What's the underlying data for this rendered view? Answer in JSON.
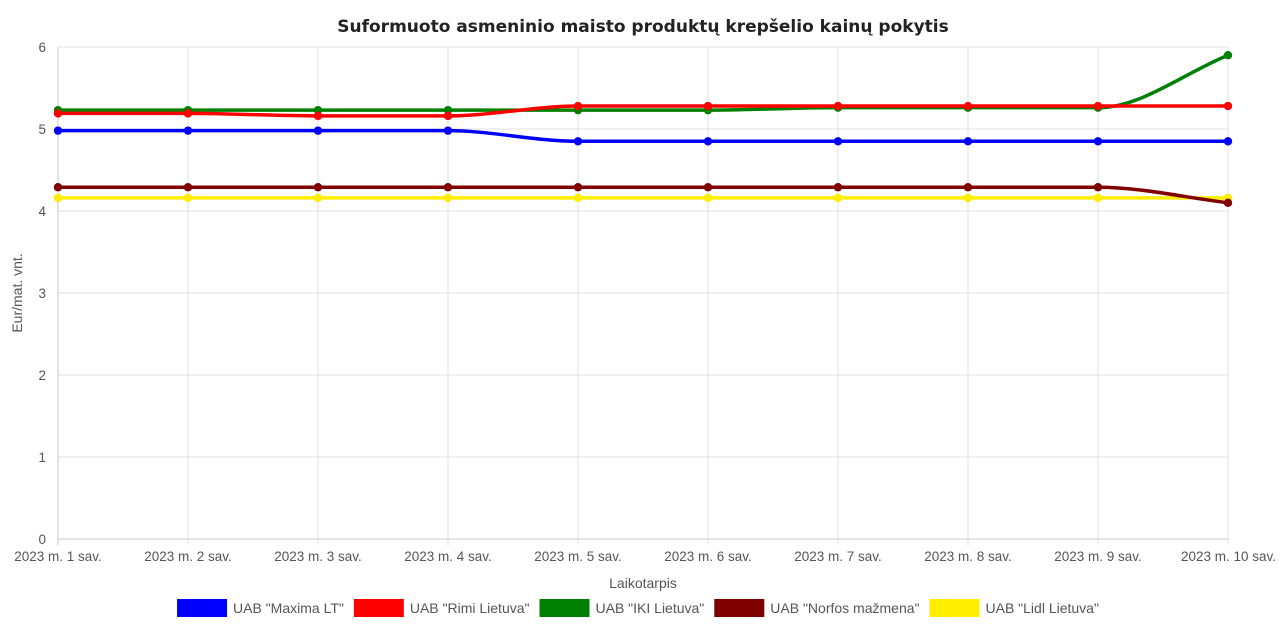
{
  "chart_data": {
    "type": "line",
    "title": "Suformuoto asmeninio maisto produktų krepšelio kainų pokytis",
    "xlabel": "Laikotarpis",
    "ylabel": "Eur/mat. vnt.",
    "ylim": [
      0,
      6
    ],
    "yticks": [
      "0",
      "1",
      "2",
      "3",
      "4",
      "5",
      "6"
    ],
    "grid": true,
    "legend_position": "bottom",
    "categories": [
      "2023 m. 1 sav.",
      "2023 m. 2 sav.",
      "2023 m. 3 sav.",
      "2023 m. 4 sav.",
      "2023 m. 5 sav.",
      "2023 m. 6 sav.",
      "2023 m. 7 sav.",
      "2023 m. 8 sav.",
      "2023 m. 9 sav.",
      "2023 m. 10 sav."
    ],
    "series": [
      {
        "name": "UAB \"Maxima LT\"",
        "color": "#0000ff",
        "values": [
          4.98,
          4.98,
          4.98,
          4.98,
          4.85,
          4.85,
          4.85,
          4.85,
          4.85,
          4.85
        ]
      },
      {
        "name": "UAB \"Rimi Lietuva\"",
        "color": "#ff0000",
        "values": [
          5.19,
          5.19,
          5.16,
          5.16,
          5.28,
          5.28,
          5.28,
          5.28,
          5.28,
          5.28
        ]
      },
      {
        "name": "UAB \"IKI Lietuva\"",
        "color": "#008000",
        "values": [
          5.23,
          5.23,
          5.23,
          5.23,
          5.23,
          5.23,
          5.26,
          5.26,
          5.26,
          5.9
        ]
      },
      {
        "name": "UAB \"Norfos mažmena\"",
        "color": "#800000",
        "values": [
          4.29,
          4.29,
          4.29,
          4.29,
          4.29,
          4.29,
          4.29,
          4.29,
          4.29,
          4.1
        ]
      },
      {
        "name": "UAB \"Lidl Lietuva\"",
        "color": "#ffee00",
        "values": [
          4.16,
          4.16,
          4.16,
          4.16,
          4.16,
          4.16,
          4.16,
          4.16,
          4.16,
          4.16
        ]
      }
    ]
  }
}
